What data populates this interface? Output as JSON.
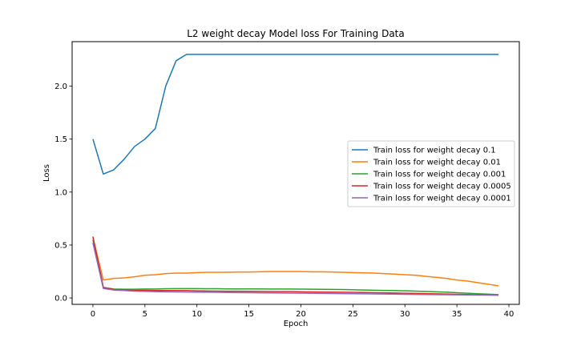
{
  "chart_data": {
    "type": "line",
    "title": "L2 weight decay Model loss For Training Data",
    "xlabel": "Epoch",
    "ylabel": "Loss",
    "xlim": [
      -2,
      41
    ],
    "ylim": [
      -0.06,
      2.42
    ],
    "x_ticks": [
      0,
      5,
      10,
      15,
      20,
      25,
      30,
      35,
      40
    ],
    "x_tick_labels": [
      "0",
      "5",
      "10",
      "15",
      "20",
      "25",
      "30",
      "35",
      "40"
    ],
    "y_ticks": [
      0.0,
      0.5,
      1.0,
      1.5,
      2.0
    ],
    "y_tick_labels": [
      "0.0",
      "0.5",
      "1.0",
      "1.5",
      "2.0"
    ],
    "grid": false,
    "legend_position": "center-right",
    "x": [
      0,
      1,
      2,
      3,
      4,
      5,
      6,
      7,
      8,
      9,
      10,
      11,
      12,
      13,
      14,
      15,
      16,
      17,
      18,
      19,
      20,
      21,
      22,
      23,
      24,
      25,
      26,
      27,
      28,
      29,
      30,
      31,
      32,
      33,
      34,
      35,
      36,
      37,
      38,
      39
    ],
    "series": [
      {
        "name": "Train loss for weight decay 0.1",
        "color": "#1f77b4",
        "values": [
          1.5,
          1.17,
          1.21,
          1.31,
          1.43,
          1.5,
          1.6,
          2.0,
          2.24,
          2.3,
          2.3,
          2.3,
          2.3,
          2.3,
          2.3,
          2.3,
          2.3,
          2.3,
          2.3,
          2.3,
          2.3,
          2.3,
          2.3,
          2.3,
          2.3,
          2.3,
          2.3,
          2.3,
          2.3,
          2.3,
          2.3,
          2.3,
          2.3,
          2.3,
          2.3,
          2.3,
          2.3,
          2.3,
          2.3,
          2.3
        ]
      },
      {
        "name": "Train loss for weight decay 0.01",
        "color": "#ff7f0e",
        "values": [
          0.57,
          0.17,
          0.185,
          0.19,
          0.2,
          0.215,
          0.22,
          0.23,
          0.235,
          0.235,
          0.24,
          0.242,
          0.242,
          0.243,
          0.245,
          0.245,
          0.247,
          0.25,
          0.25,
          0.25,
          0.25,
          0.247,
          0.247,
          0.245,
          0.242,
          0.24,
          0.238,
          0.235,
          0.23,
          0.225,
          0.22,
          0.215,
          0.205,
          0.195,
          0.185,
          0.17,
          0.16,
          0.145,
          0.13,
          0.115
        ]
      },
      {
        "name": "Train loss for weight decay 0.001",
        "color": "#2ca02c",
        "values": [
          0.55,
          0.1,
          0.085,
          0.083,
          0.083,
          0.085,
          0.085,
          0.087,
          0.088,
          0.088,
          0.088,
          0.087,
          0.087,
          0.086,
          0.086,
          0.086,
          0.086,
          0.085,
          0.085,
          0.085,
          0.084,
          0.083,
          0.082,
          0.081,
          0.08,
          0.078,
          0.075,
          0.073,
          0.071,
          0.07,
          0.068,
          0.065,
          0.062,
          0.058,
          0.055,
          0.05,
          0.045,
          0.04,
          0.036,
          0.032
        ]
      },
      {
        "name": "Train loss for weight decay 0.0005",
        "color": "#d62728",
        "values": [
          0.58,
          0.1,
          0.08,
          0.075,
          0.072,
          0.072,
          0.07,
          0.07,
          0.07,
          0.07,
          0.068,
          0.066,
          0.065,
          0.064,
          0.064,
          0.063,
          0.062,
          0.061,
          0.06,
          0.06,
          0.058,
          0.057,
          0.056,
          0.055,
          0.054,
          0.053,
          0.052,
          0.05,
          0.049,
          0.047,
          0.045,
          0.043,
          0.041,
          0.039,
          0.037,
          0.035,
          0.033,
          0.031,
          0.029,
          0.027
        ]
      },
      {
        "name": "Train loss for weight decay 0.0001",
        "color": "#9467bd",
        "values": [
          0.52,
          0.09,
          0.075,
          0.07,
          0.065,
          0.062,
          0.06,
          0.058,
          0.057,
          0.056,
          0.055,
          0.054,
          0.053,
          0.052,
          0.051,
          0.05,
          0.049,
          0.048,
          0.047,
          0.046,
          0.045,
          0.044,
          0.043,
          0.042,
          0.041,
          0.04,
          0.039,
          0.038,
          0.037,
          0.036,
          0.035,
          0.034,
          0.033,
          0.032,
          0.031,
          0.03,
          0.029,
          0.028,
          0.027,
          0.026
        ]
      }
    ]
  }
}
